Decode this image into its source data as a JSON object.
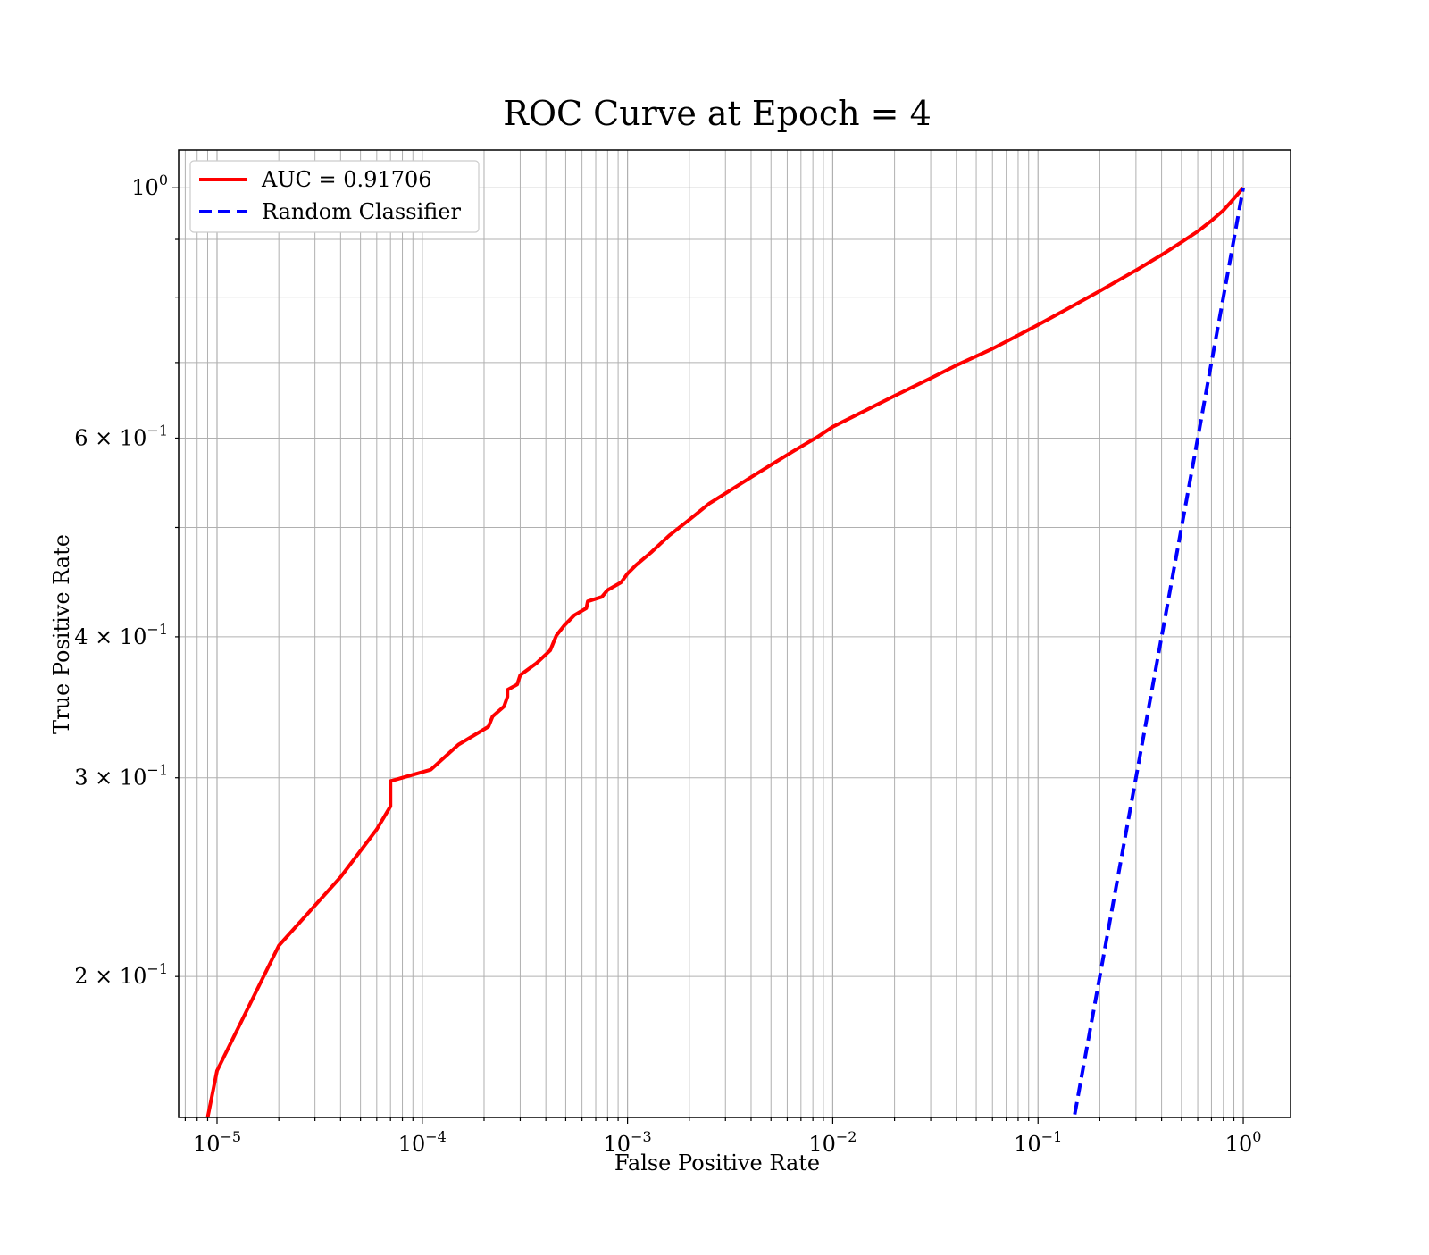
{
  "chart_data": {
    "type": "line",
    "title": "ROC Curve at Epoch = 4",
    "xlabel": "False Positive Rate",
    "ylabel": "True Positive Rate",
    "xscale": "log",
    "yscale": "log",
    "xlim": [
      6.5e-06,
      1.7
    ],
    "ylim": [
      0.15,
      1.08
    ],
    "grid": "on (major and minor)",
    "legend_position": "top-left",
    "xticks": [
      {
        "base": "10",
        "exp": "−5",
        "value": 1e-05
      },
      {
        "base": "10",
        "exp": "−4",
        "value": 0.0001
      },
      {
        "base": "10",
        "exp": "−3",
        "value": 0.001
      },
      {
        "base": "10",
        "exp": "−2",
        "value": 0.01
      },
      {
        "base": "10",
        "exp": "−1",
        "value": 0.1
      },
      {
        "base": "10",
        "exp": "0",
        "value": 1
      }
    ],
    "yticks": [
      {
        "base": "10",
        "exp": "0",
        "value": 1.0
      },
      {
        "base": "6 × 10",
        "exp": "−1",
        "value": 0.6
      },
      {
        "base": "4 × 10",
        "exp": "−1",
        "value": 0.4
      },
      {
        "base": "3 × 10",
        "exp": "−1",
        "value": 0.3
      },
      {
        "base": "2 × 10",
        "exp": "−1",
        "value": 0.2
      }
    ],
    "series": [
      {
        "name": "AUC = 0.91706",
        "color": "#ff0000",
        "style": "solid",
        "x": [
          9e-06,
          1e-05,
          2e-05,
          4e-05,
          6e-05,
          7e-05,
          7e-05,
          0.00011,
          0.00015,
          0.00021,
          0.00022,
          0.00025,
          0.00026,
          0.00026,
          0.00029,
          0.0003,
          0.00036,
          0.00042,
          0.00045,
          0.00049,
          0.00055,
          0.00063,
          0.00064,
          0.00075,
          0.0008,
          0.00093,
          0.001,
          0.0011,
          0.0013,
          0.0016,
          0.002,
          0.0025,
          0.0032,
          0.004,
          0.005,
          0.0065,
          0.0085,
          0.01,
          0.015,
          0.02,
          0.03,
          0.04,
          0.06,
          0.08,
          0.1,
          0.15,
          0.2,
          0.3,
          0.4,
          0.5,
          0.6,
          0.7,
          0.8,
          0.9,
          1.0
        ],
        "y": [
          0.15,
          0.165,
          0.213,
          0.245,
          0.27,
          0.283,
          0.298,
          0.305,
          0.321,
          0.333,
          0.34,
          0.347,
          0.354,
          0.359,
          0.363,
          0.37,
          0.379,
          0.389,
          0.401,
          0.409,
          0.418,
          0.424,
          0.43,
          0.434,
          0.44,
          0.447,
          0.455,
          0.463,
          0.475,
          0.492,
          0.508,
          0.525,
          0.54,
          0.554,
          0.568,
          0.585,
          0.602,
          0.614,
          0.637,
          0.654,
          0.678,
          0.696,
          0.72,
          0.74,
          0.756,
          0.787,
          0.81,
          0.845,
          0.872,
          0.895,
          0.915,
          0.935,
          0.955,
          0.978,
          1.0
        ]
      },
      {
        "name": "Random Classifier",
        "color": "#0000ff",
        "style": "dashed",
        "x": [
          0.14,
          0.2,
          0.3,
          0.4,
          0.5,
          0.6,
          0.7,
          0.8,
          0.9,
          1.0
        ],
        "y": [
          0.14,
          0.2,
          0.3,
          0.4,
          0.5,
          0.6,
          0.7,
          0.8,
          0.9,
          1.0
        ]
      }
    ]
  }
}
